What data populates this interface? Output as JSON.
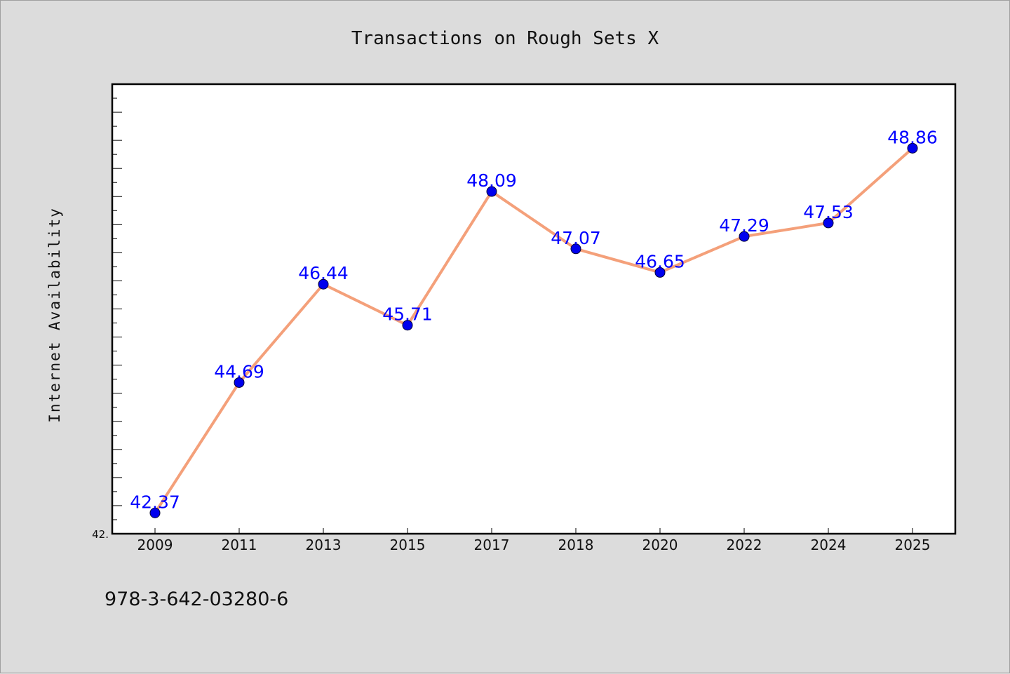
{
  "chart_data": {
    "type": "line",
    "title": "Transactions on Rough Sets X",
    "xlabel": "",
    "ylabel": "Internet Availability",
    "categories": [
      "2009",
      "2011",
      "2013",
      "2015",
      "2017",
      "2018",
      "2020",
      "2022",
      "2024",
      "2025"
    ],
    "series": [
      {
        "values": [
          42.37,
          44.69,
          46.44,
          45.71,
          48.09,
          47.07,
          46.65,
          47.29,
          47.53,
          48.86
        ],
        "labels": [
          "42.37",
          "44.69",
          "46.44",
          "45.71",
          "48.09",
          "47.07",
          "46.65",
          "47.29",
          "47.53",
          "48.86"
        ],
        "line_color": "#f4a07a",
        "marker_color": "#0000ee"
      }
    ],
    "ylim": [
      42.0,
      50.0
    ],
    "y_tick_label": "42.",
    "y_minor_ticks": 32,
    "label_color": "#0000ff",
    "grid": false,
    "legend": "none"
  },
  "footer": {
    "isbn": "978-3-642-03280-6"
  }
}
